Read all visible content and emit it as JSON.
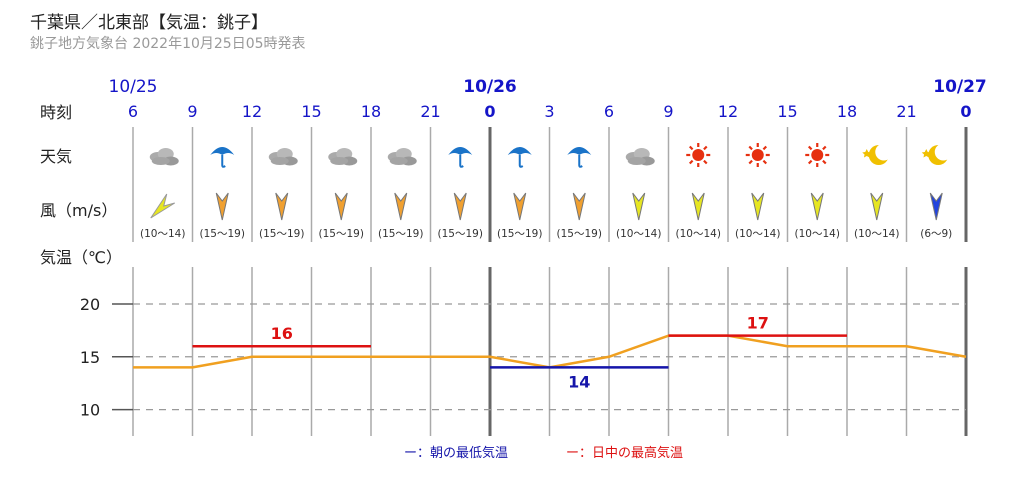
{
  "header": {
    "title": "千葉県／北東部【気温：銚子】",
    "subtitle": "銚子地方気象台 2022年10月25日05時発表"
  },
  "row_labels": {
    "time": "時刻",
    "weather": "天気",
    "wind": "風（m/s）",
    "temperature": "気温（℃）"
  },
  "dates": [
    {
      "text": "10/25",
      "slot": 0
    },
    {
      "text": "10/26",
      "slot": 6
    },
    {
      "text": "10/27",
      "slot": 14
    }
  ],
  "hours": [
    "6",
    "9",
    "12",
    "15",
    "18",
    "21",
    "0",
    "3",
    "6",
    "9",
    "12",
    "15",
    "18",
    "21",
    "0"
  ],
  "weather": [
    "cloudy-icon",
    "umbrella-icon",
    "cloudy-icon",
    "cloudy-icon",
    "cloudy-icon",
    "umbrella-icon",
    "umbrella-icon",
    "umbrella-icon",
    "cloudy-icon",
    "sun-icon",
    "sun-icon",
    "sun-icon",
    "moon-icon",
    "moon-icon"
  ],
  "wind": [
    {
      "range": "(10～14)",
      "dir": "SW",
      "color": "#e6e622"
    },
    {
      "range": "(15～19)",
      "dir": "N",
      "color": "#f0a030"
    },
    {
      "range": "(15～19)",
      "dir": "N",
      "color": "#f0a030"
    },
    {
      "range": "(15～19)",
      "dir": "N",
      "color": "#f0a030"
    },
    {
      "range": "(15～19)",
      "dir": "N",
      "color": "#f0a030"
    },
    {
      "range": "(15～19)",
      "dir": "N",
      "color": "#f0a030"
    },
    {
      "range": "(15～19)",
      "dir": "N",
      "color": "#f0a030"
    },
    {
      "range": "(15～19)",
      "dir": "N",
      "color": "#f0a030"
    },
    {
      "range": "(10～14)",
      "dir": "N",
      "color": "#e6e622"
    },
    {
      "range": "(10～14)",
      "dir": "N",
      "color": "#e6e622"
    },
    {
      "range": "(10～14)",
      "dir": "N",
      "color": "#e6e622"
    },
    {
      "range": "(10～14)",
      "dir": "N",
      "color": "#e6e622"
    },
    {
      "range": "(10～14)",
      "dir": "N",
      "color": "#e6e622"
    },
    {
      "range": "(6～9)",
      "dir": "N",
      "color": "#2244dd"
    }
  ],
  "legend": {
    "min_label": "ー：朝の最低気温",
    "max_label": "ー：日中の最高気温"
  },
  "colors": {
    "date": "#1515c8",
    "temp_line": "#f0a020",
    "max": "#dd1111",
    "min": "#1515aa"
  },
  "chart_data": {
    "type": "line",
    "x": [
      "6",
      "9",
      "12",
      "15",
      "18",
      "21",
      "0",
      "3",
      "6",
      "9",
      "12",
      "15",
      "18",
      "21",
      "0"
    ],
    "series": [
      {
        "values": [
          14,
          14,
          15,
          15,
          15,
          15,
          15,
          14,
          15,
          17,
          17,
          16,
          16,
          16,
          15
        ]
      }
    ],
    "yticks": [
      10,
      15,
      20
    ],
    "ylim": [
      7.5,
      23.5
    ],
    "ylabel": "気温（℃）",
    "grid": true,
    "extremes": [
      {
        "kind": "max",
        "value": 16,
        "label": "16",
        "from": 1,
        "to": 4
      },
      {
        "kind": "min",
        "value": 14,
        "label": "14",
        "from": 6,
        "to": 9
      },
      {
        "kind": "max",
        "value": 17,
        "label": "17",
        "from": 9,
        "to": 12
      }
    ]
  }
}
